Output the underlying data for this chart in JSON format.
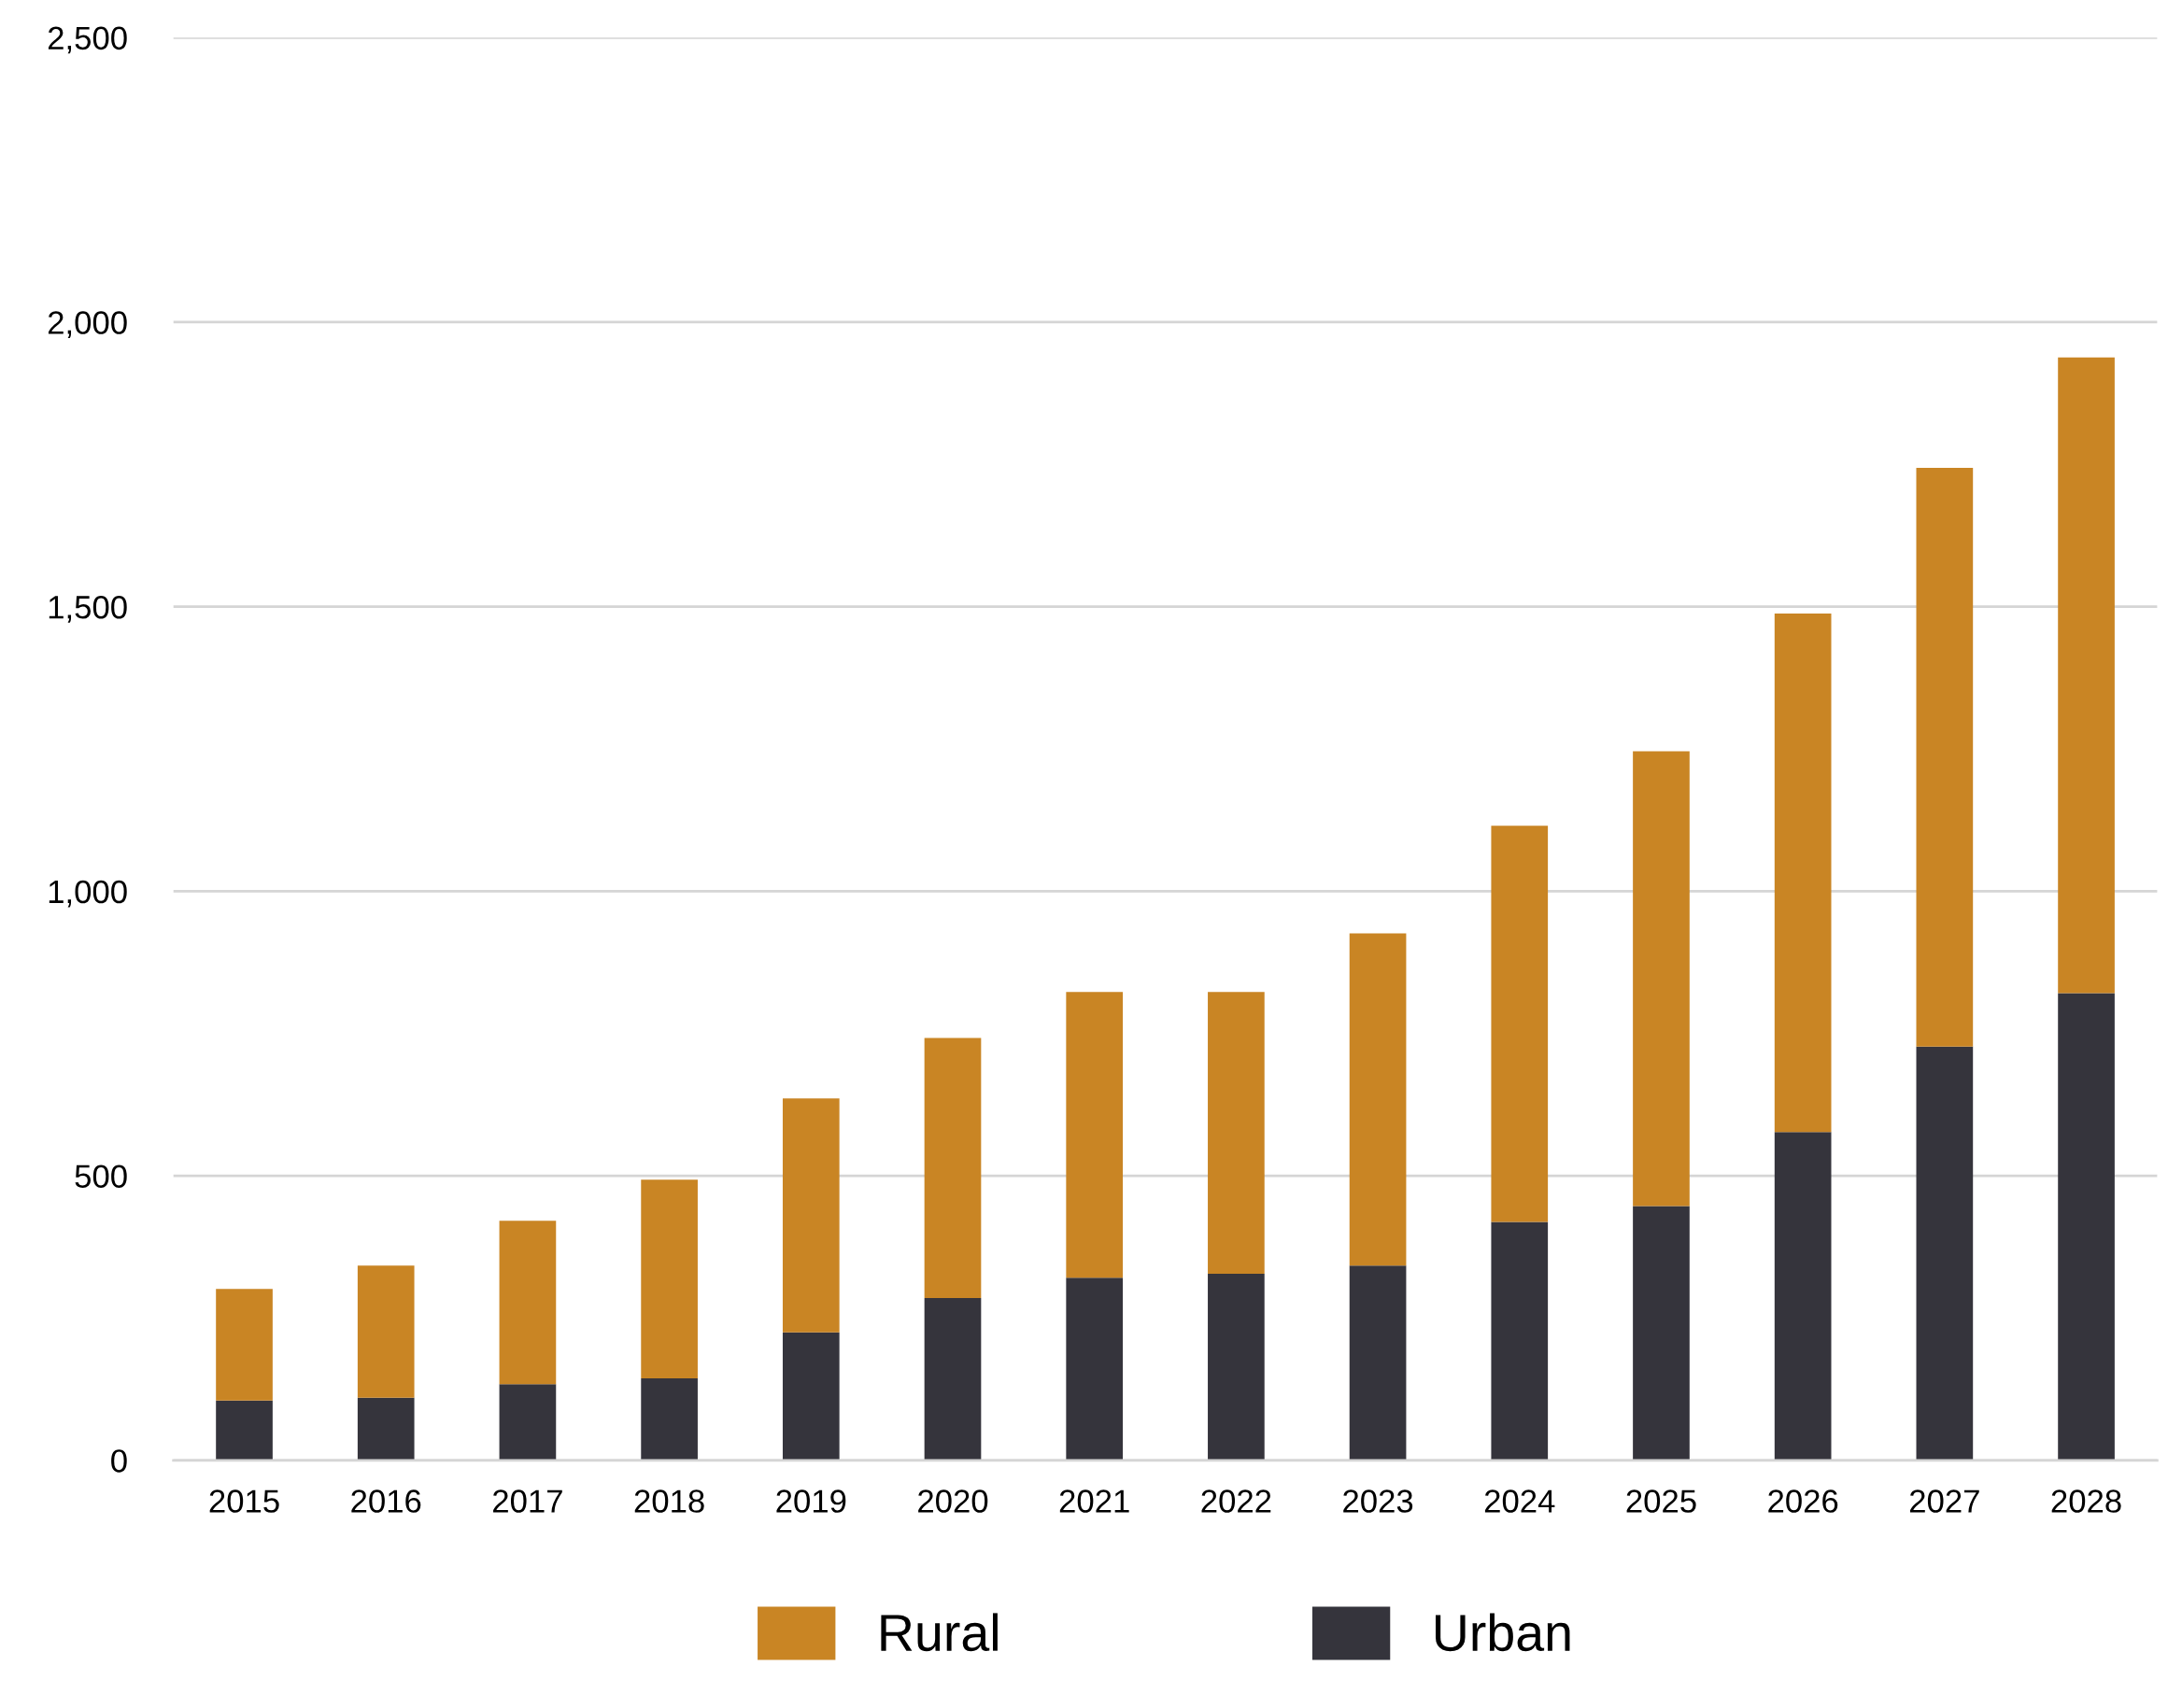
{
  "chart_data": {
    "type": "bar",
    "stacked": true,
    "categories": [
      "2015",
      "2016",
      "2017",
      "2018",
      "2019",
      "2020",
      "2021",
      "2022",
      "2023",
      "2024",
      "2025",
      "2026",
      "2027",
      "2028"
    ],
    "series": [
      {
        "name": "Urban",
        "color": "#35343c",
        "values": [
          105,
          110,
          134,
          144,
          225,
          285,
          321,
          328,
          342,
          419,
          447,
          577,
          727,
          821
        ]
      },
      {
        "name": "Rural",
        "color": "#c98524",
        "values": [
          196,
          232,
          287,
          349,
          411,
          457,
          502,
          495,
          584,
          696,
          799,
          911,
          1017,
          1117
        ]
      }
    ],
    "ylim": [
      0,
      2500
    ],
    "yticks": [
      {
        "value": 0,
        "label": "0"
      },
      {
        "value": 500,
        "label": "500"
      },
      {
        "value": 1000,
        "label": "1,000"
      },
      {
        "value": 1500,
        "label": "1,500"
      },
      {
        "value": 2000,
        "label": "2,000"
      },
      {
        "value": 2500,
        "label": "2,500"
      }
    ],
    "grid": "y",
    "legend": "bottom"
  }
}
